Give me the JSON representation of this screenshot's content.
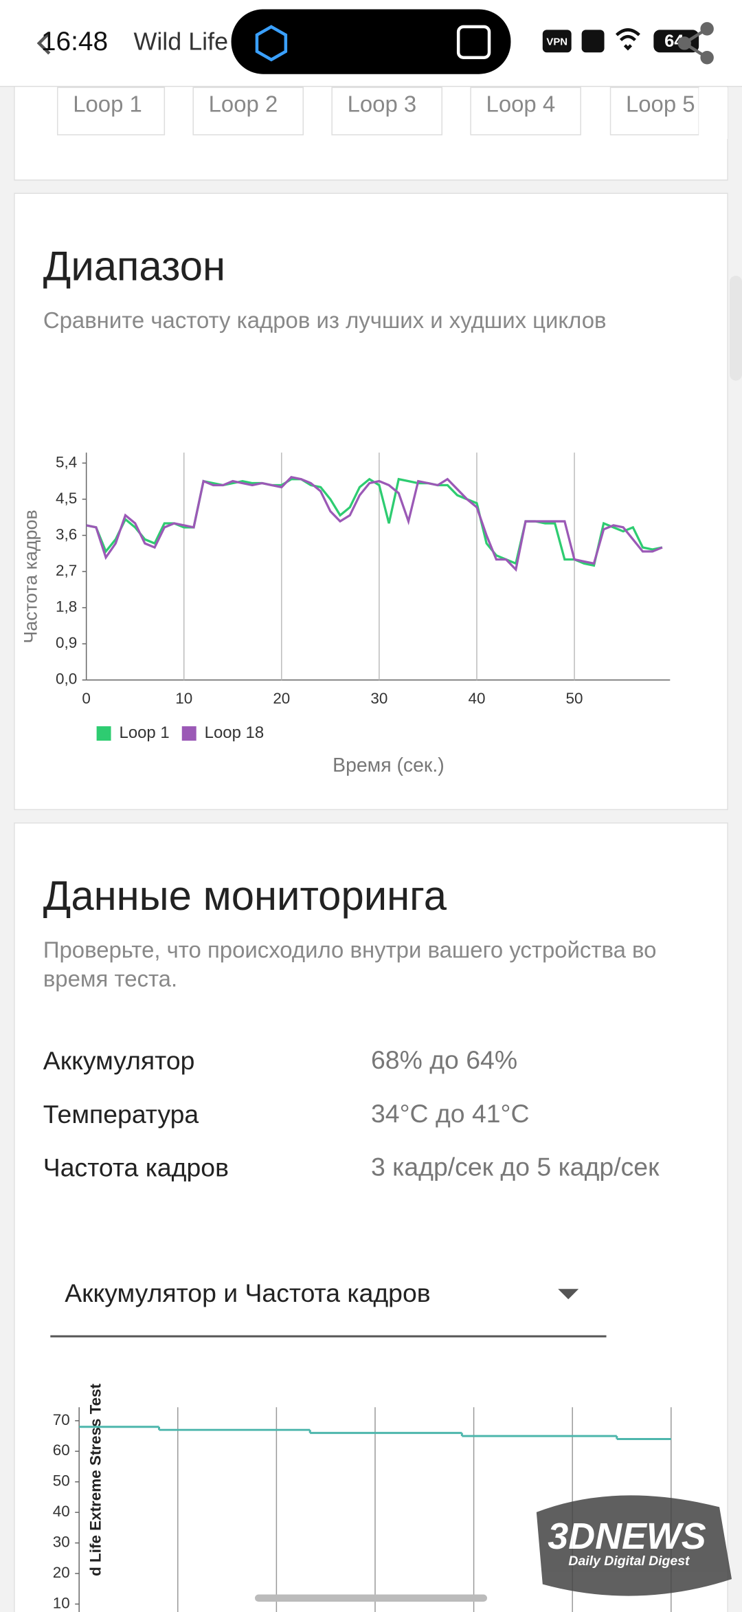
{
  "status_bar": {
    "time": "16:48",
    "title": "Wild Life",
    "vpn": "VPN",
    "battery": "64"
  },
  "loop_tabs": [
    "Loop 1",
    "Loop 2",
    "Loop 3",
    "Loop 4",
    "Loop 5"
  ],
  "range_section": {
    "title": "Диапазон",
    "subtitle": "Сравните частоту кадров из лучших и худших циклов"
  },
  "monitoring": {
    "title": "Данные мониторинга",
    "subtitle": "Проверьте, что происходило внутри вашего устройства во время теста.",
    "rows": [
      [
        "Аккумулятор",
        "68% до 64%"
      ],
      [
        "Температура",
        "34°C до 41°C"
      ],
      [
        "Частота кадров",
        "3 кадр/сек до 5 кадр/сек"
      ]
    ],
    "dropdown": "Аккумулятор и Частота кадров"
  },
  "chart_data": [
    {
      "type": "line",
      "x_label": "Время (сек.)",
      "y_label": "Частота кадров",
      "x": [
        0,
        1,
        2,
        3,
        4,
        5,
        6,
        7,
        8,
        9,
        10,
        11,
        12,
        13,
        14,
        15,
        16,
        17,
        18,
        19,
        20,
        21,
        22,
        23,
        24,
        25,
        26,
        27,
        28,
        29,
        30,
        31,
        32,
        33,
        34,
        35,
        36,
        37,
        38,
        39,
        40,
        41,
        42,
        43,
        44,
        45,
        46,
        47,
        48,
        49,
        50,
        51,
        52,
        53,
        54,
        55,
        56,
        57,
        58,
        59
      ],
      "xlim": [
        0,
        59.8
      ],
      "xticks": [
        0,
        10,
        20,
        30,
        40,
        50
      ],
      "xgrid": true,
      "ylim": [
        0,
        5.66
      ],
      "yticks": [
        {
          "value": 0,
          "label": "0,0"
        },
        {
          "value": 0.9,
          "label": "0,9"
        },
        {
          "value": 1.8,
          "label": "1,8"
        },
        {
          "value": 2.7,
          "label": "2,7"
        },
        {
          "value": 3.6,
          "label": "3,6"
        },
        {
          "value": 4.5,
          "label": "4,5"
        },
        {
          "value": 5.4,
          "label": "5,4"
        }
      ],
      "series": [
        {
          "name": "Loop 1",
          "color": "#2ecc71",
          "values": [
            3.85,
            3.8,
            3.2,
            3.5,
            4.0,
            3.8,
            3.5,
            3.4,
            3.9,
            3.9,
            3.8,
            3.8,
            4.95,
            4.9,
            4.85,
            4.9,
            4.95,
            4.9,
            4.9,
            4.85,
            4.85,
            5.0,
            5.0,
            4.85,
            4.8,
            4.5,
            4.1,
            4.3,
            4.8,
            5.0,
            4.85,
            3.9,
            5.0,
            4.95,
            4.9,
            4.9,
            4.85,
            4.85,
            4.6,
            4.5,
            4.4,
            3.4,
            3.1,
            3.0,
            2.9,
            3.95,
            3.95,
            3.9,
            3.9,
            3.0,
            3.0,
            2.9,
            2.85,
            3.9,
            3.8,
            3.7,
            3.8,
            3.3,
            3.25,
            3.3
          ]
        },
        {
          "name": "Loop 18",
          "color": "#9b59b6",
          "values": [
            3.85,
            3.8,
            3.05,
            3.4,
            4.1,
            3.9,
            3.4,
            3.3,
            3.8,
            3.9,
            3.85,
            3.8,
            4.95,
            4.85,
            4.85,
            4.95,
            4.9,
            4.85,
            4.9,
            4.85,
            4.8,
            5.05,
            5.0,
            4.9,
            4.7,
            4.2,
            3.95,
            4.1,
            4.6,
            4.9,
            4.95,
            4.85,
            4.65,
            3.95,
            4.95,
            4.9,
            4.85,
            5.0,
            4.75,
            4.5,
            4.3,
            3.6,
            3.0,
            3.0,
            2.75,
            3.95,
            3.95,
            3.95,
            3.95,
            3.95,
            3.0,
            2.95,
            2.9,
            3.75,
            3.85,
            3.8,
            3.5,
            3.2,
            3.2,
            3.3
          ]
        }
      ]
    },
    {
      "type": "step",
      "y_label": "d Life Extreme Stress Test",
      "x_edges": [
        0,
        0.81,
        2.34,
        3.88,
        5.45,
        6
      ],
      "xlim": [
        0,
        6
      ],
      "xgrid_at": [
        1,
        2,
        3,
        4,
        5,
        6
      ],
      "ylim": [
        0,
        74.4
      ],
      "yticks": [
        10,
        20,
        30,
        40,
        50,
        60,
        70
      ],
      "series": [
        {
          "color": "#4db6ac",
          "values": [
            68,
            67,
            66,
            65,
            64
          ]
        }
      ]
    }
  ],
  "watermark": {
    "logo": "3DNEWS",
    "tagline": "Daily Digital Digest"
  }
}
